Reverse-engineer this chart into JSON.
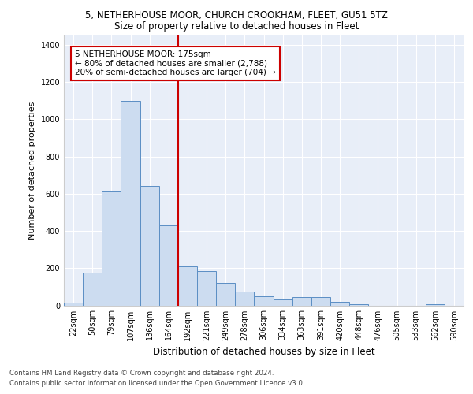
{
  "title_line1": "5, NETHERHOUSE MOOR, CHURCH CROOKHAM, FLEET, GU51 5TZ",
  "title_line2": "Size of property relative to detached houses in Fleet",
  "xlabel": "Distribution of detached houses by size in Fleet",
  "ylabel": "Number of detached properties",
  "categories": [
    "22sqm",
    "50sqm",
    "79sqm",
    "107sqm",
    "136sqm",
    "164sqm",
    "192sqm",
    "221sqm",
    "249sqm",
    "278sqm",
    "306sqm",
    "334sqm",
    "363sqm",
    "391sqm",
    "420sqm",
    "448sqm",
    "476sqm",
    "505sqm",
    "533sqm",
    "562sqm",
    "590sqm"
  ],
  "values": [
    15,
    175,
    610,
    1100,
    640,
    430,
    210,
    185,
    120,
    75,
    50,
    30,
    45,
    45,
    20,
    5,
    0,
    0,
    0,
    5,
    0
  ],
  "bar_color": "#ccdcf0",
  "bar_edge_color": "#5b8ec4",
  "red_line_x": 6.0,
  "annotation_text": "5 NETHERHOUSE MOOR: 175sqm\n← 80% of detached houses are smaller (2,788)\n20% of semi-detached houses are larger (704) →",
  "annotation_box_color": "#ffffff",
  "annotation_box_edge": "#cc0000",
  "red_line_color": "#cc0000",
  "footer_line1": "Contains HM Land Registry data © Crown copyright and database right 2024.",
  "footer_line2": "Contains public sector information licensed under the Open Government Licence v3.0.",
  "ylim": [
    0,
    1450
  ],
  "yticks": [
    0,
    200,
    400,
    600,
    800,
    1000,
    1200,
    1400
  ],
  "plot_bg_color": "#e8eef8",
  "grid_color": "#ffffff",
  "title1_fontsize": 8.5,
  "title2_fontsize": 8.5,
  "tick_fontsize": 7.0,
  "ylabel_fontsize": 8.0,
  "xlabel_fontsize": 8.5,
  "footer_fontsize": 6.2,
  "annot_fontsize": 7.5
}
